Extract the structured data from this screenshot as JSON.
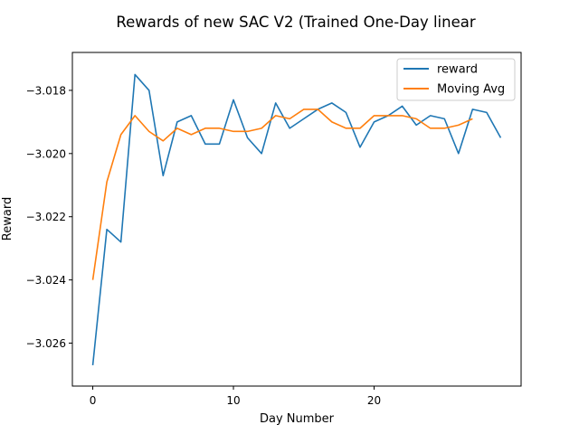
{
  "chart_data": {
    "type": "line",
    "title": "Rewards of new SAC V2 (Trained One-Day linear",
    "xlabel": "Day Number",
    "ylabel": "Reward",
    "xlim": [
      -1.45,
      30.45
    ],
    "ylim": [
      -3.02736,
      -3.0168
    ],
    "xticks": [
      0,
      10,
      20
    ],
    "yticks": [
      -3.026,
      -3.024,
      -3.022,
      -3.02,
      -3.018
    ],
    "ytick_labels": [
      "−3.026",
      "−3.024",
      "−3.022",
      "−3.020",
      "−3.018"
    ],
    "legend_position": "top-right",
    "grid": false,
    "series": [
      {
        "name": "reward",
        "color": "#1f77b4",
        "x": [
          0,
          1,
          2,
          3,
          4,
          5,
          6,
          7,
          8,
          9,
          10,
          11,
          12,
          13,
          14,
          15,
          16,
          17,
          18,
          19,
          20,
          21,
          22,
          23,
          24,
          25,
          26,
          27,
          28,
          29
        ],
        "values": [
          -3.0267,
          -3.0224,
          -3.0228,
          -3.0175,
          -3.018,
          -3.0207,
          -3.019,
          -3.0188,
          -3.0197,
          -3.0197,
          -3.0183,
          -3.0195,
          -3.02,
          -3.0184,
          -3.0192,
          -3.0189,
          -3.0186,
          -3.0184,
          -3.0187,
          -3.0198,
          -3.019,
          -3.0188,
          -3.0185,
          -3.0191,
          -3.0188,
          -3.0189,
          -3.02,
          -3.0186,
          -3.0187,
          -3.0195
        ]
      },
      {
        "name": "Moving Avg",
        "color": "#ff7f0e",
        "x": [
          0,
          1,
          2,
          3,
          4,
          5,
          6,
          7,
          8,
          9,
          10,
          11,
          12,
          13,
          14,
          15,
          16,
          17,
          18,
          19,
          20,
          21,
          22,
          23,
          24,
          25,
          26,
          27
        ],
        "values": [
          -3.024,
          -3.0209,
          -3.0194,
          -3.0188,
          -3.0193,
          -3.0196,
          -3.0192,
          -3.0194,
          -3.0192,
          -3.0192,
          -3.0193,
          -3.0193,
          -3.0192,
          -3.0188,
          -3.0189,
          -3.0186,
          -3.0186,
          -3.019,
          -3.0192,
          -3.0192,
          -3.0188,
          -3.0188,
          -3.0188,
          -3.0189,
          -3.0192,
          -3.0192,
          -3.0191,
          -3.0189
        ]
      }
    ]
  }
}
